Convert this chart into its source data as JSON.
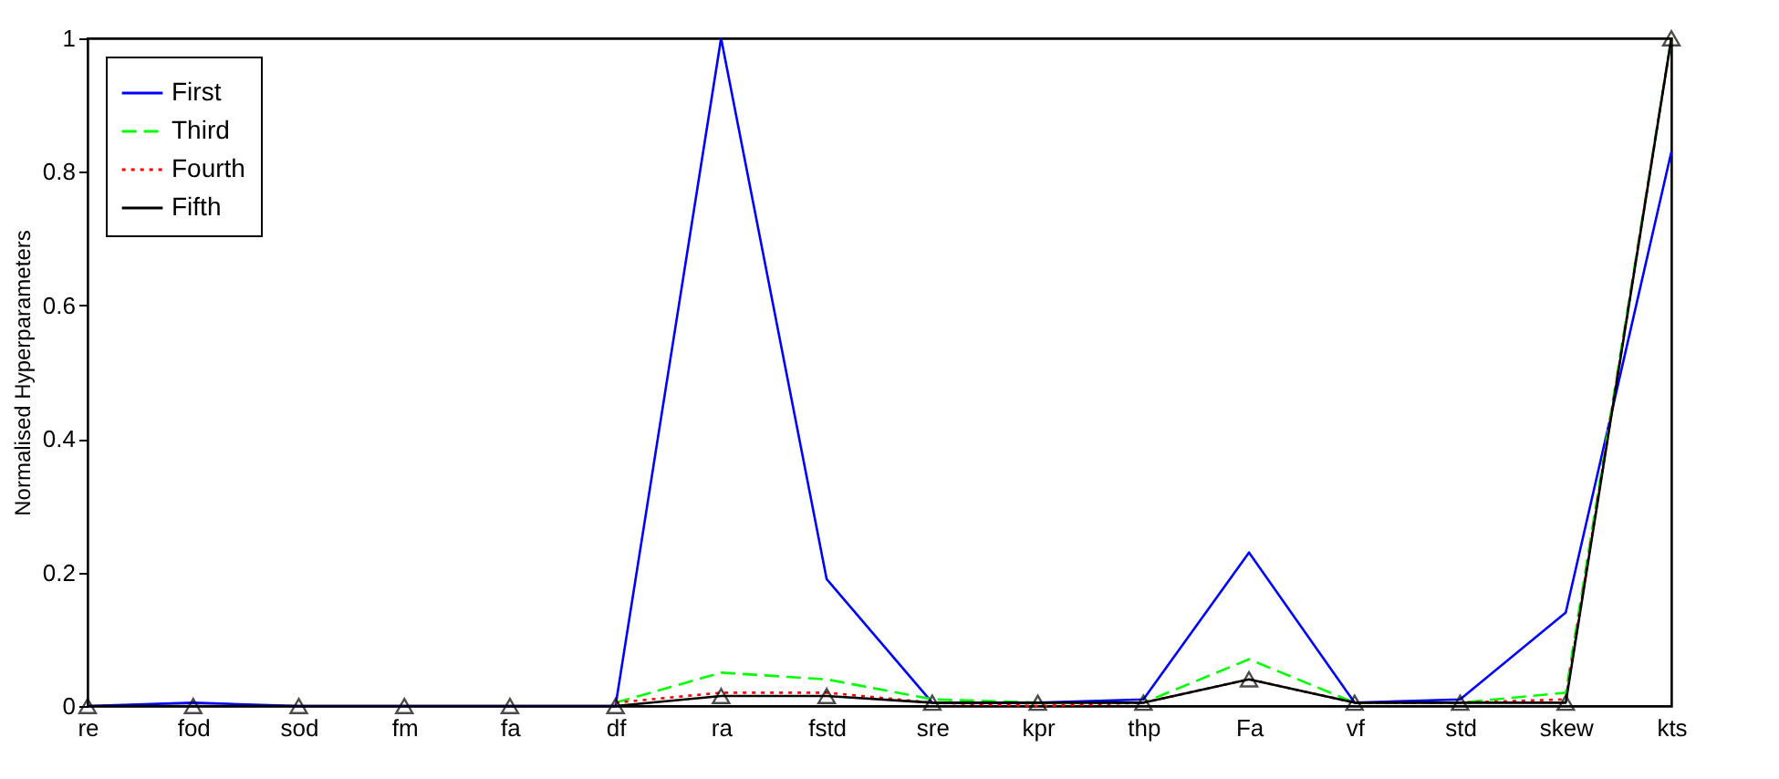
{
  "chart_data": {
    "type": "line",
    "ylabel": "Normalised Hyperparameters",
    "categories": [
      "re",
      "fod",
      "sod",
      "fm",
      "fa",
      "df",
      "ra",
      "fstd",
      "sre",
      "kpr",
      "thp",
      "Fa",
      "vf",
      "std",
      "skew",
      "kts"
    ],
    "ylim": [
      0,
      1
    ],
    "yticks": [
      0,
      0.2,
      0.4,
      0.6,
      0.8,
      1
    ],
    "grid": false,
    "legend": "top left",
    "series": [
      {
        "name": "First",
        "color": "#0000ff",
        "line_style": "solid",
        "marker": "none",
        "values": [
          0,
          0.005,
          0,
          0,
          0,
          0,
          1,
          0.19,
          0.005,
          0.005,
          0.01,
          0.23,
          0.005,
          0.01,
          0.14,
          0.83
        ]
      },
      {
        "name": "Third",
        "color": "#00ff00",
        "line_style": "dashed",
        "marker": "none",
        "values": [
          null,
          null,
          null,
          null,
          null,
          0.005,
          0.05,
          0.04,
          0.01,
          0.005,
          0.005,
          0.07,
          0.005,
          0.005,
          0.02,
          1
        ]
      },
      {
        "name": "Fourth",
        "color": "#ff0000",
        "line_style": "dotted",
        "marker": "none",
        "values": [
          null,
          null,
          null,
          null,
          null,
          0.005,
          0.02,
          0.02,
          0.005,
          0,
          0.005,
          0.04,
          0.005,
          0.005,
          0.01,
          1
        ]
      },
      {
        "name": "Fifth",
        "color": "#000000",
        "line_style": "solid",
        "marker": "triangle",
        "values": [
          0,
          0,
          0,
          0,
          0,
          0,
          0.015,
          0.015,
          0.005,
          0.005,
          0.005,
          0.04,
          0.005,
          0.005,
          0.005,
          1
        ]
      }
    ]
  }
}
